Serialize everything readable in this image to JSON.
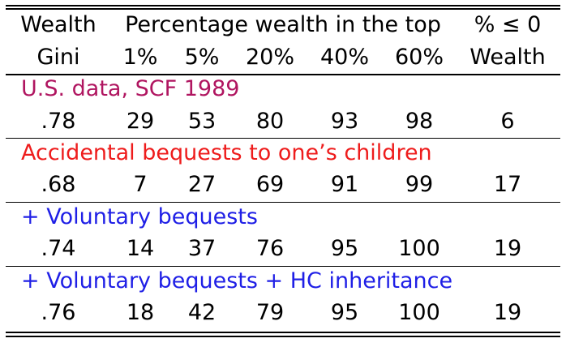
{
  "table": {
    "header_row1": {
      "gini_top": "Wealth",
      "percentage": "Percentage wealth in the top",
      "nonpositive": "% ≤ 0"
    },
    "header_row2": {
      "gini_bottom": "Gini",
      "cols": [
        "1%",
        "5%",
        "20%",
        "40%",
        "60%"
      ],
      "nonpositive_bottom": "Wealth"
    },
    "sections": [
      {
        "label": "U.S. data, SCF 1989",
        "color": "#b01560",
        "row": [
          ".78",
          "29",
          "53",
          "80",
          "93",
          "98",
          "6"
        ]
      },
      {
        "label": "Accidental bequests to one’s children",
        "color": "#ee1c1c",
        "row": [
          ".68",
          "7",
          "27",
          "69",
          "91",
          "99",
          "17"
        ]
      },
      {
        "label": "+ Voluntary bequests",
        "color": "#1f1fe6",
        "row": [
          ".74",
          "14",
          "37",
          "76",
          "95",
          "100",
          "19"
        ]
      },
      {
        "label": "+ Voluntary bequests + HC inheritance",
        "color": "#1f1fe6",
        "row": [
          ".76",
          "18",
          "42",
          "79",
          "95",
          "100",
          "19"
        ]
      }
    ]
  }
}
